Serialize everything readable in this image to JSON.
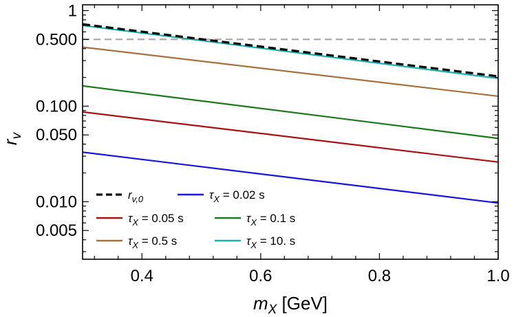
{
  "chart_data": {
    "type": "line",
    "xscale": "linear",
    "yscale": "log",
    "xlim": [
      0.3,
      1.0
    ],
    "ylim": [
      0.0025,
      1.15
    ],
    "x_ticks": [
      0.4,
      0.6,
      0.8,
      1.0
    ],
    "x_tick_labels": [
      "0.4",
      "0.6",
      "0.8",
      "1.0"
    ],
    "y_ticks": [
      0.005,
      0.01,
      0.05,
      0.1,
      0.5,
      1
    ],
    "y_tick_labels": [
      "0.005",
      "0.010",
      "0.050",
      "0.100",
      "0.500",
      "1"
    ],
    "xlabel": {
      "base": "m",
      "sub": "X",
      "rest": " [GeV]"
    },
    "ylabel": {
      "base": "r",
      "sub": "v"
    },
    "reference_line": {
      "y": 0.5,
      "color": "#aaaaaa",
      "style": "dashed"
    },
    "grid": false,
    "legend_position": "bottom-left",
    "series": [
      {
        "label": {
          "base": "r",
          "sub": "v,0",
          "rest": ""
        },
        "color": "#000000",
        "dash": true,
        "x": [
          0.3,
          1.0
        ],
        "values": [
          0.72,
          0.205
        ]
      },
      {
        "label": {
          "base": "τ",
          "sub": "X",
          "rest": " = 0.02 s"
        },
        "color": "#1515e0",
        "dash": false,
        "x": [
          0.3,
          1.0
        ],
        "values": [
          0.033,
          0.0097
        ]
      },
      {
        "label": {
          "base": "τ",
          "sub": "X",
          "rest": " = 0.05 s"
        },
        "color": "#aa1010",
        "dash": false,
        "x": [
          0.3,
          1.0
        ],
        "values": [
          0.087,
          0.026
        ]
      },
      {
        "label": {
          "base": "τ",
          "sub": "X",
          "rest": " = 0.1 s"
        },
        "color": "#1a7a1a",
        "dash": false,
        "x": [
          0.3,
          1.0
        ],
        "values": [
          0.163,
          0.046
        ]
      },
      {
        "label": {
          "base": "τ",
          "sub": "X",
          "rest": " = 0.5 s"
        },
        "color": "#a8703a",
        "dash": false,
        "x": [
          0.3,
          1.0
        ],
        "values": [
          0.415,
          0.127
        ]
      },
      {
        "label": {
          "base": "τ",
          "sub": "X",
          "rest": " = 10. s"
        },
        "color": "#1ab0b0",
        "dash": false,
        "x": [
          0.3,
          1.0
        ],
        "values": [
          0.7,
          0.195
        ]
      }
    ]
  }
}
